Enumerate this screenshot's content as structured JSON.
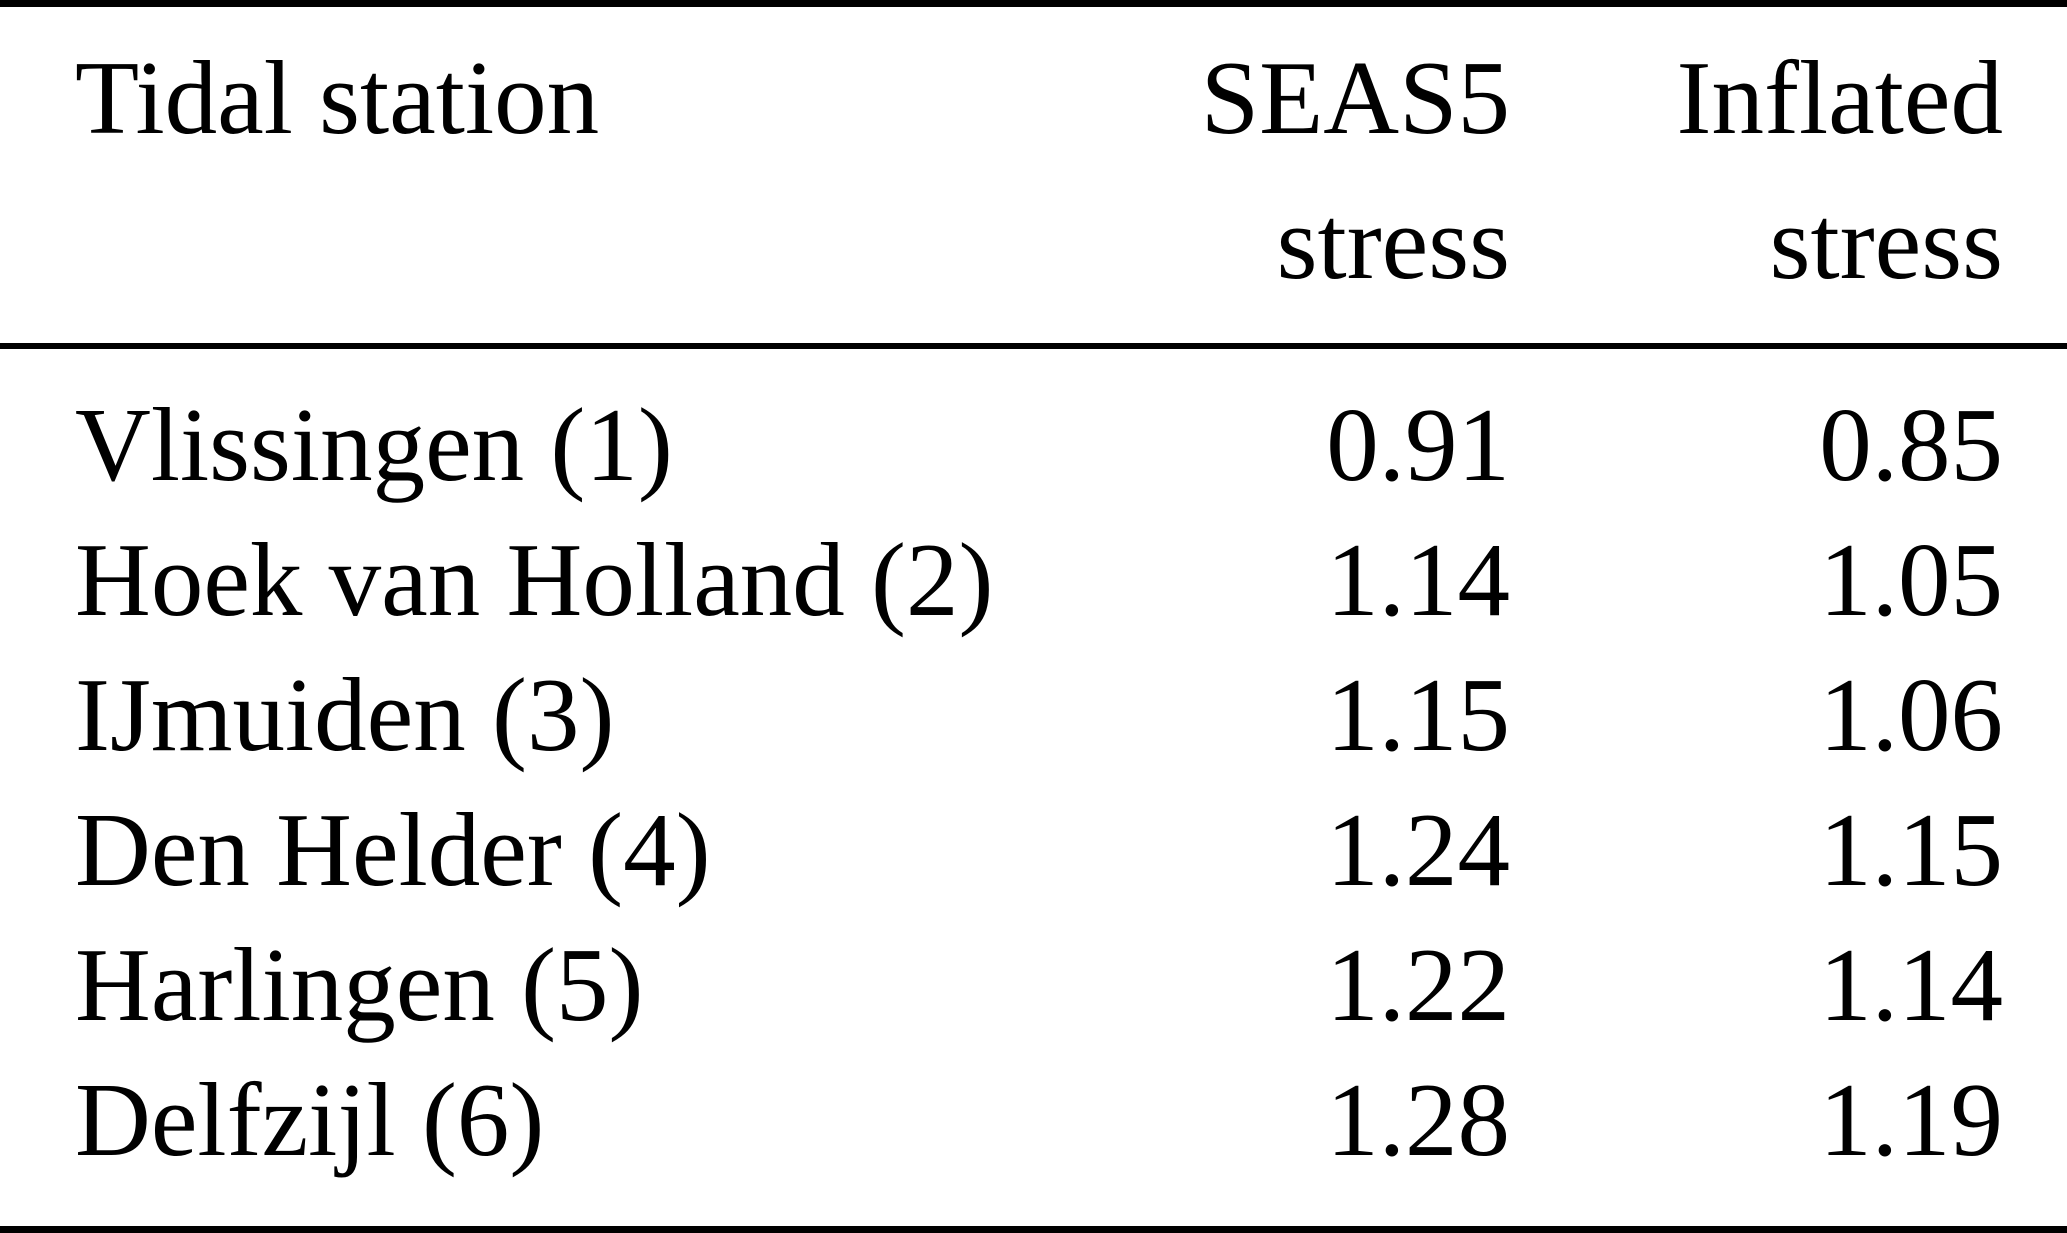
{
  "colors": {
    "background": "#ffffff",
    "text": "#000000",
    "rule": "#000000"
  },
  "table": {
    "header": {
      "station": "Tidal station",
      "seas5_line1": "SEAS5",
      "seas5_line2": "stress",
      "inflated_line1": "Inflated",
      "inflated_line2": "stress"
    },
    "rows": [
      {
        "station": "Vlissingen (1)",
        "seas5_stress": "0.91",
        "inflated_stress": "0.85"
      },
      {
        "station": "Hoek van Holland (2)",
        "seas5_stress": "1.14",
        "inflated_stress": "1.05"
      },
      {
        "station": "IJmuiden (3)",
        "seas5_stress": "1.15",
        "inflated_stress": "1.06"
      },
      {
        "station": "Den Helder (4)",
        "seas5_stress": "1.24",
        "inflated_stress": "1.15"
      },
      {
        "station": "Harlingen (5)",
        "seas5_stress": "1.22",
        "inflated_stress": "1.14"
      },
      {
        "station": "Delfzijl (6)",
        "seas5_stress": "1.28",
        "inflated_stress": "1.19"
      }
    ]
  }
}
